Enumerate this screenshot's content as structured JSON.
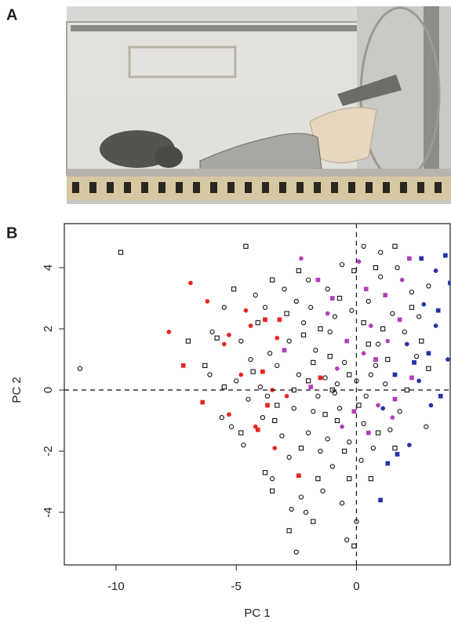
{
  "panel_a_label": "A",
  "chart_data": {
    "type": "scatter",
    "panel_label": "B",
    "xlabel": "PC 1",
    "ylabel": "PC 2",
    "xlim": [
      -12.15,
      3.9
    ],
    "ylim": [
      -5.72,
      5.44
    ],
    "xticks": [
      -10,
      -5,
      0
    ],
    "yticks": [
      -4,
      -2,
      0,
      2,
      4
    ],
    "hline": 0,
    "vline": 0,
    "series": [
      {
        "color": "#111111",
        "marker": "circle",
        "filled": false,
        "x": [
          -11.5,
          -5.5,
          -6.0,
          -4.8,
          -4.2,
          -3.8,
          -3.0,
          -2.5,
          -2.0,
          -1.2,
          -0.6,
          0.3,
          1.0,
          1.7,
          2.3,
          -5.0,
          -4.5,
          -5.2,
          -4.7,
          -3.9,
          -3.3,
          -2.8,
          -2.2,
          -1.7,
          -1.3,
          -0.9,
          -0.5,
          0.0,
          0.4,
          0.8,
          1.2,
          -2.6,
          -2.0,
          -1.5,
          -1.0,
          -0.3,
          0.2,
          0.7,
          1.4,
          -2.3,
          -2.1,
          -1.4,
          -0.6,
          0.0,
          -2.5,
          -3.5,
          -2.8,
          -1.8,
          -1.1,
          -0.2,
          0.5,
          1.5,
          2.0,
          2.5,
          -3.6,
          -4.0,
          -2.4,
          -1.6,
          -0.7,
          0.9,
          1.8,
          2.9,
          -0.4,
          -3.1,
          -2.7,
          -1.2,
          0.3,
          1.0,
          -0.9,
          -4.4,
          2.6,
          -1.9,
          -3.7,
          0.6,
          -0.8,
          -5.6,
          -6.1,
          3.0
        ],
        "y": [
          0.7,
          2.7,
          1.9,
          1.6,
          3.1,
          2.7,
          3.3,
          2.9,
          3.6,
          3.3,
          4.1,
          4.7,
          4.5,
          4.0,
          3.2,
          0.3,
          -0.3,
          -1.2,
          -1.8,
          -0.9,
          0.8,
          1.6,
          2.2,
          1.3,
          0.4,
          -0.1,
          0.9,
          0.3,
          -0.2,
          0.8,
          0.2,
          -0.6,
          -1.4,
          -2.0,
          -2.5,
          -1.7,
          -2.3,
          -1.9,
          -1.3,
          -3.5,
          -4.0,
          -3.3,
          -3.7,
          -4.3,
          -5.3,
          -2.9,
          -2.2,
          -0.7,
          1.9,
          2.6,
          2.9,
          2.5,
          1.9,
          1.1,
          1.2,
          0.1,
          0.5,
          -0.2,
          -0.6,
          1.5,
          -0.7,
          -1.2,
          -4.9,
          -1.5,
          -3.9,
          -1.6,
          -1.1,
          3.7,
          2.4,
          1.0,
          2.4,
          2.7,
          -0.2,
          0.5,
          0.2,
          -0.9,
          0.5,
          3.4
        ]
      },
      {
        "color": "#111111",
        "marker": "square",
        "filled": false,
        "x": [
          -9.8,
          -7.0,
          -6.3,
          -5.8,
          -5.1,
          -4.6,
          -3.5,
          -2.9,
          -2.2,
          -1.5,
          -0.7,
          -0.1,
          0.8,
          1.6,
          2.3,
          -4.3,
          -3.3,
          -2.6,
          -1.8,
          -1.0,
          -0.3,
          0.5,
          1.3,
          -4.8,
          -3.8,
          -3.4,
          -2.3,
          -1.6,
          -0.8,
          0.1,
          0.9,
          1.6,
          -2.8,
          -3.5,
          -1.8,
          -0.3,
          -0.1,
          2.1,
          2.7,
          -1.3,
          -0.5,
          0.3,
          -2.0,
          -5.5,
          -4.1,
          -2.4,
          -1.1,
          0.6,
          1.1,
          3.0
        ],
        "y": [
          4.5,
          1.6,
          0.8,
          1.7,
          3.3,
          4.7,
          3.6,
          2.5,
          1.8,
          2.0,
          3.0,
          3.9,
          4.0,
          4.7,
          2.7,
          0.6,
          -0.5,
          0.0,
          0.9,
          0.0,
          0.5,
          1.5,
          1.0,
          -1.4,
          -2.7,
          -1.0,
          -1.9,
          -2.9,
          -1.0,
          -0.5,
          -1.4,
          -1.9,
          -4.6,
          -3.3,
          -4.3,
          -2.9,
          -5.1,
          0.0,
          1.6,
          -0.8,
          -2.0,
          2.2,
          0.3,
          0.1,
          2.2,
          3.9,
          1.1,
          -2.9,
          2.0,
          0.7
        ]
      },
      {
        "color": "#e8241f",
        "marker": "circle",
        "filled": true,
        "x": [
          -6.9,
          -6.2,
          -7.8,
          -5.3,
          -5.5,
          -4.4,
          -3.3,
          -4.8,
          -3.5,
          -5.3,
          -4.2,
          -3.4,
          -2.9,
          -4.6
        ],
        "y": [
          3.5,
          2.9,
          1.9,
          1.8,
          1.5,
          2.1,
          1.7,
          0.5,
          0.0,
          -0.8,
          -1.2,
          -1.9,
          -0.2,
          2.6
        ]
      },
      {
        "color": "#e8241f",
        "marker": "square",
        "filled": true,
        "x": [
          -7.2,
          -6.4,
          -3.8,
          -3.2,
          -2.4,
          -3.9,
          -1.5,
          -4.1,
          -3.7
        ],
        "y": [
          0.8,
          -0.4,
          2.3,
          2.3,
          -2.8,
          0.6,
          0.4,
          -1.3,
          -0.5
        ]
      },
      {
        "color": "#b23fb8",
        "marker": "circle",
        "filled": true,
        "x": [
          -2.3,
          0.1,
          -1.2,
          0.6,
          1.3,
          -0.8,
          1.9,
          0.9,
          -0.6,
          1.5,
          0.3
        ],
        "y": [
          4.3,
          4.2,
          2.5,
          2.1,
          1.6,
          0.7,
          3.6,
          -0.5,
          -1.2,
          -0.9,
          1.2
        ]
      },
      {
        "color": "#b23fb8",
        "marker": "square",
        "filled": true,
        "x": [
          -1.6,
          -1.0,
          0.4,
          1.2,
          1.8,
          -0.4,
          0.8,
          -3.0,
          2.3,
          -0.1,
          0.5,
          1.6,
          -1.9,
          2.2
        ],
        "y": [
          3.6,
          3.0,
          3.3,
          3.1,
          2.3,
          1.6,
          1.0,
          1.3,
          0.4,
          -0.7,
          -1.4,
          -0.3,
          0.1,
          4.3
        ]
      },
      {
        "color": "#2632a8",
        "marker": "circle",
        "filled": true,
        "x": [
          3.3,
          2.8,
          3.3,
          2.1,
          2.6,
          1.1,
          2.2,
          3.1,
          3.8
        ],
        "y": [
          3.9,
          2.8,
          2.1,
          1.5,
          0.3,
          -0.6,
          -1.8,
          -0.5,
          1.0
        ]
      },
      {
        "color": "#2632a8",
        "marker": "square",
        "filled": true,
        "x": [
          2.7,
          3.7,
          3.9,
          3.4,
          1.6,
          3.0,
          1.3,
          1.7,
          1.0,
          2.4,
          3.5
        ],
        "y": [
          4.3,
          4.4,
          3.5,
          2.6,
          0.5,
          1.2,
          -2.4,
          -2.1,
          -3.6,
          0.9,
          -0.2
        ]
      }
    ]
  }
}
